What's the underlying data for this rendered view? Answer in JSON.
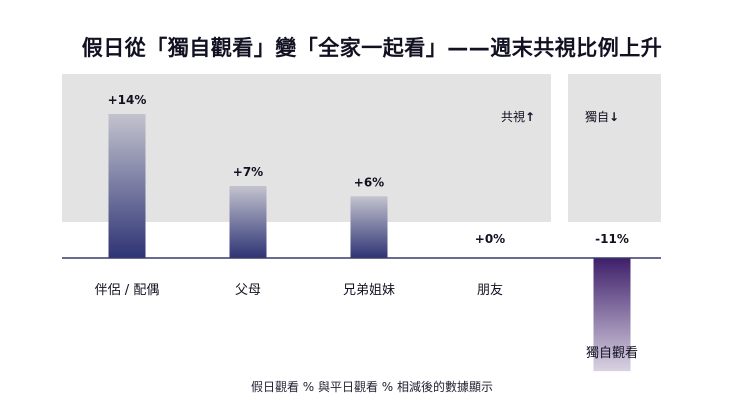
{
  "title": "假日從「獨自觀看」變「全家一起看」——週末共視比例上升",
  "panels": {
    "co_viewing_label": "共視",
    "co_viewing_arrow": "↑",
    "solo_label": "獨自",
    "solo_arrow": "↓"
  },
  "footnote": "假日觀看 % 與平日觀看 % 相減後的數據顯示",
  "colors": {
    "panel_bg": "#e3e3e3",
    "bar_top_pos": "#c3c3cf",
    "bar_bottom_pos": "#2e3475",
    "bar_top_neg": "#3e1f6a",
    "bar_bottom_neg": "#d9d2e2",
    "baseline": "#3a3a6a"
  },
  "chart_data": {
    "type": "bar",
    "title": "假日從「獨自觀看」變「全家一起看」——週末共視比例上升",
    "xlabel": "",
    "ylabel": "",
    "categories": [
      "伴侶 / 配偶",
      "父母",
      "兄弟姐妹",
      "朋友",
      "獨自觀看"
    ],
    "values": [
      14,
      7,
      6,
      0,
      -11
    ],
    "data_labels": [
      "+14%",
      "+7%",
      "+6%",
      "+0%",
      "-11%"
    ],
    "unit": "%",
    "groups": [
      {
        "label": "共視",
        "categories": [
          "伴侶 / 配偶",
          "父母",
          "兄弟姐妹",
          "朋友"
        ]
      },
      {
        "label": "獨自",
        "categories": [
          "獨自觀看"
        ]
      }
    ],
    "grid": false,
    "legend": "none"
  }
}
